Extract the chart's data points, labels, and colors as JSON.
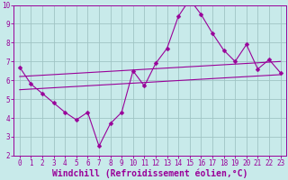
{
  "xlabel": "Windchill (Refroidissement éolien,°C)",
  "background_color": "#c8eaea",
  "grid_color": "#a0c4c4",
  "line_color": "#990099",
  "plot_bg": "#c8eaea",
  "x_min": 0,
  "x_max": 23,
  "y_min": 2,
  "y_max": 10,
  "x_ticks": [
    0,
    1,
    2,
    3,
    4,
    5,
    6,
    7,
    8,
    9,
    10,
    11,
    12,
    13,
    14,
    15,
    16,
    17,
    18,
    19,
    20,
    21,
    22,
    23
  ],
  "y_ticks": [
    2,
    3,
    4,
    5,
    6,
    7,
    8,
    9,
    10
  ],
  "line1_x": [
    0,
    1,
    2,
    3,
    4,
    5,
    6,
    7,
    8,
    9,
    10,
    11,
    12,
    13,
    14,
    15,
    16,
    17,
    18,
    19,
    20,
    21,
    22,
    23
  ],
  "line1_y": [
    6.7,
    5.8,
    5.3,
    4.8,
    4.3,
    3.9,
    4.3,
    2.5,
    3.7,
    4.3,
    6.5,
    5.7,
    6.9,
    7.7,
    9.4,
    10.3,
    9.5,
    8.5,
    7.6,
    7.0,
    7.9,
    6.6,
    7.1,
    6.4
  ],
  "line2_x": [
    0,
    23
  ],
  "line2_y": [
    5.5,
    6.3
  ],
  "line3_x": [
    0,
    23
  ],
  "line3_y": [
    6.2,
    7.0
  ],
  "marker_size": 2.5,
  "line_width": 0.8,
  "font_size": 6.5,
  "tick_font_size": 5.5,
  "xlabel_fontsize": 7.0
}
